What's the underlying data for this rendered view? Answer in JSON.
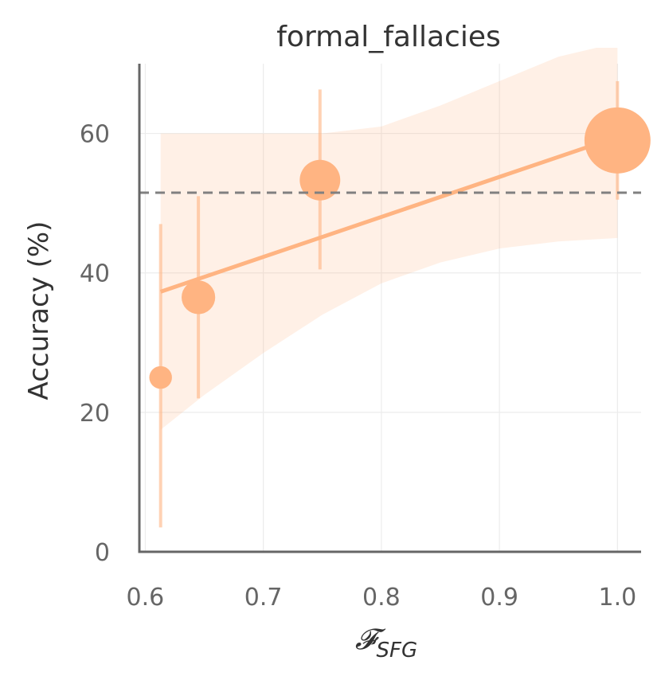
{
  "chart_data": {
    "type": "scatter",
    "title": "formal_fallacies",
    "xlabel_main": "𝓕",
    "xlabel_sub": "SFG",
    "ylabel": "Accuracy (%)",
    "xlim": [
      0.595,
      1.02
    ],
    "ylim": [
      0,
      70
    ],
    "xticks": [
      0.6,
      0.7,
      0.8,
      0.9,
      1.0
    ],
    "xtick_labels": [
      "0.6",
      "0.7",
      "0.8",
      "0.9",
      "1.0"
    ],
    "yticks": [
      0,
      20,
      40,
      60
    ],
    "ytick_labels": [
      "0",
      "20",
      "40",
      "60"
    ],
    "grid": true,
    "baseline": 51.5,
    "color": "#ffb482",
    "points": [
      {
        "x": 0.613,
        "y": 25.0,
        "err_low": 3.5,
        "err_high": 47.0,
        "size": 0.1
      },
      {
        "x": 0.645,
        "y": 36.5,
        "err_low": 22.0,
        "err_high": 51.0,
        "size": 0.22
      },
      {
        "x": 0.748,
        "y": 53.3,
        "err_low": 40.5,
        "err_high": 66.3,
        "size": 0.32
      },
      {
        "x": 1.0,
        "y": 59.0,
        "err_low": 50.5,
        "err_high": 67.5,
        "size": 0.85
      }
    ],
    "fit": {
      "x": [
        0.613,
        1.0
      ],
      "y": [
        37.3,
        59.5
      ]
    },
    "ci_band": {
      "x": [
        0.613,
        0.65,
        0.7,
        0.75,
        0.8,
        0.85,
        0.9,
        0.95,
        1.0
      ],
      "lower": [
        17.5,
        22.5,
        28.5,
        34.0,
        38.5,
        41.5,
        43.5,
        44.5,
        45.0
      ],
      "upper": [
        60.0,
        60.0,
        60.0,
        60.0,
        61.0,
        64.0,
        67.5,
        71.0,
        73.0
      ]
    }
  }
}
